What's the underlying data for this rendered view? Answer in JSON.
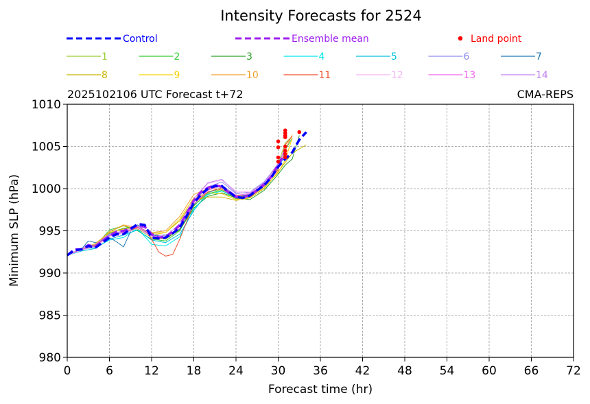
{
  "chart_data": {
    "type": "line",
    "title": "Intensity Forecasts for 2524",
    "subtitle_left": "2025102106 UTC Forecast t+72",
    "subtitle_right": "CMA-REPS",
    "xlabel": "Forecast time (hr)",
    "ylabel": "Minimum SLP (hPa)",
    "xlim": [
      0,
      72
    ],
    "ylim": [
      980,
      1010
    ],
    "xticks": [
      0,
      6,
      12,
      18,
      24,
      30,
      36,
      42,
      48,
      54,
      60,
      66,
      72
    ],
    "yticks": [
      980,
      985,
      990,
      995,
      1000,
      1005,
      1010
    ],
    "grid": true,
    "legend_placement": "top",
    "legend": {
      "control": {
        "label": "Control",
        "color": "#0000ff"
      },
      "mean": {
        "label": "Ensemble mean",
        "color": "#a020f0"
      },
      "land": {
        "label": "Land point",
        "color": "#ff0000"
      }
    },
    "members": [
      {
        "label": "1",
        "color": "#9acd32"
      },
      {
        "label": "2",
        "color": "#32cd32"
      },
      {
        "label": "3",
        "color": "#2ca02c"
      },
      {
        "label": "4",
        "color": "#00e5ee"
      },
      {
        "label": "5",
        "color": "#00bfdf"
      },
      {
        "label": "6",
        "color": "#8c8cf0"
      },
      {
        "label": "7",
        "color": "#1f77b4"
      },
      {
        "label": "8",
        "color": "#c8b400"
      },
      {
        "label": "9",
        "color": "#f5d000"
      },
      {
        "label": "10",
        "color": "#f0a030"
      },
      {
        "label": "11",
        "color": "#f05030"
      },
      {
        "label": "12",
        "color": "#f5b5f5"
      },
      {
        "label": "13",
        "color": "#ee66ee"
      },
      {
        "label": "14",
        "color": "#c080f0"
      }
    ],
    "control_series": {
      "x": [
        0,
        1,
        2,
        3,
        4,
        5,
        6,
        7,
        8,
        9,
        10,
        11,
        12,
        13,
        14,
        15,
        16,
        17,
        18,
        19,
        20,
        21,
        22,
        23,
        24,
        25,
        26,
        27,
        28,
        29,
        30,
        31,
        32,
        33,
        34
      ],
      "y": [
        992.1,
        992.7,
        992.8,
        993.2,
        993.0,
        993.6,
        994.2,
        994.6,
        994.6,
        995.2,
        995.8,
        995.7,
        994.2,
        994.1,
        994.2,
        994.7,
        995.4,
        996.8,
        998.3,
        999.3,
        1000.0,
        1000.3,
        1000.3,
        999.6,
        999.0,
        998.9,
        999.2,
        999.8,
        1000.4,
        1001.3,
        1002.6,
        1003.5,
        1004.3,
        1005.8,
        1006.7
      ]
    },
    "mean_series": {
      "x": [
        0,
        1,
        2,
        3,
        4,
        5,
        6,
        7,
        8,
        9,
        10,
        11,
        12,
        13,
        14,
        15,
        16,
        17,
        18,
        19,
        20,
        21,
        22,
        23,
        24,
        25,
        26,
        27,
        28,
        29,
        30,
        31
      ],
      "y": [
        992.1,
        992.8,
        992.8,
        993.3,
        993.1,
        993.8,
        994.4,
        994.9,
        995.0,
        995.3,
        995.6,
        995.5,
        994.6,
        994.2,
        994.3,
        994.9,
        995.7,
        997.1,
        998.6,
        999.6,
        1000.1,
        1000.4,
        1000.2,
        999.5,
        999.0,
        998.9,
        999.3,
        999.8,
        1000.5,
        1001.4,
        1002.8,
        1004.3
      ]
    },
    "member_series": [
      {
        "x": [
          0,
          2,
          4,
          6,
          8,
          10,
          12,
          14,
          16,
          18,
          20,
          22,
          24,
          26,
          28,
          30,
          31,
          32
        ],
        "y": [
          992.1,
          992.9,
          993.4,
          994.8,
          995.3,
          995.2,
          994.2,
          994.0,
          995.2,
          997.9,
          999.6,
          999.9,
          999.0,
          999.2,
          1000.6,
          1003.0,
          1005.4,
          1006.2
        ]
      },
      {
        "x": [
          0,
          2,
          4,
          6,
          8,
          10,
          12,
          14,
          16,
          18,
          20,
          22,
          24,
          26,
          28,
          30,
          31,
          32
        ],
        "y": [
          992.1,
          992.7,
          993.2,
          995.1,
          995.6,
          995.0,
          994.0,
          993.8,
          995.0,
          998.0,
          999.4,
          999.8,
          998.8,
          999.0,
          1000.3,
          1002.5,
          1004.6,
          1006.0
        ]
      },
      {
        "x": [
          0,
          2,
          4,
          6,
          8,
          10,
          12,
          14,
          16,
          18,
          20,
          22,
          24,
          26,
          28,
          30,
          31,
          32,
          33
        ],
        "y": [
          992.1,
          992.8,
          993.1,
          994.7,
          995.3,
          995.5,
          994.4,
          994.1,
          995.1,
          997.7,
          999.1,
          999.5,
          998.9,
          998.7,
          999.8,
          1001.7,
          1002.8,
          1003.5,
          1006.3
        ]
      },
      {
        "x": [
          0,
          2,
          4,
          6,
          8,
          10,
          12,
          14,
          16,
          18,
          20,
          22,
          24,
          26,
          28,
          30,
          31
        ],
        "y": [
          992.1,
          992.8,
          993.0,
          993.9,
          994.2,
          995.3,
          993.4,
          993.2,
          994.3,
          997.6,
          999.3,
          999.7,
          999.0,
          999.2,
          1000.4,
          1002.6,
          1004.3
        ]
      },
      {
        "x": [
          0,
          2,
          4,
          6,
          8,
          10,
          12,
          14,
          16,
          18,
          20,
          22,
          24,
          26,
          28,
          30,
          31
        ],
        "y": [
          992.1,
          992.6,
          992.9,
          994.0,
          994.5,
          995.1,
          993.9,
          993.6,
          994.6,
          997.4,
          999.5,
          1000.1,
          999.1,
          999.2,
          1000.1,
          1002.4,
          1004.0
        ]
      },
      {
        "x": [
          0,
          2,
          4,
          6,
          8,
          10,
          12,
          14,
          16,
          18,
          20,
          22,
          24,
          26,
          28,
          30,
          31
        ],
        "y": [
          992.1,
          992.9,
          993.3,
          994.5,
          994.9,
          995.4,
          994.4,
          994.2,
          995.5,
          998.4,
          1000.2,
          1000.8,
          999.4,
          999.6,
          1000.8,
          1002.9,
          1004.8
        ]
      },
      {
        "x": [
          0,
          2,
          3,
          4,
          6,
          7,
          8,
          9,
          10,
          12,
          14,
          16,
          18,
          20,
          22,
          24,
          26,
          28,
          30,
          31
        ],
        "y": [
          992.1,
          992.8,
          993.8,
          993.6,
          994.2,
          993.7,
          993.1,
          994.9,
          995.7,
          994.4,
          994.5,
          995.2,
          998.1,
          999.9,
          1000.3,
          999.1,
          999.3,
          1000.5,
          1002.7,
          1004.2
        ]
      },
      {
        "x": [
          0,
          2,
          4,
          6,
          8,
          10,
          12,
          14,
          16,
          18,
          20,
          22,
          24,
          26,
          28,
          30,
          31,
          32,
          34
        ],
        "y": [
          992.1,
          992.9,
          993.3,
          994.9,
          995.6,
          995.2,
          994.7,
          994.8,
          996.2,
          998.6,
          999.0,
          999.0,
          998.6,
          998.9,
          1000.0,
          1002.0,
          1003.1,
          1004.2,
          1005.2
        ]
      },
      {
        "x": [
          0,
          2,
          4,
          6,
          8,
          10,
          12,
          14,
          16,
          18,
          20,
          22,
          24,
          26,
          28,
          30,
          31,
          32
        ],
        "y": [
          992.1,
          992.8,
          993.5,
          994.8,
          995.2,
          995.5,
          994.5,
          994.8,
          996.4,
          998.9,
          999.5,
          999.4,
          998.7,
          999.1,
          1000.1,
          1001.9,
          1003.4,
          1006.0
        ]
      },
      {
        "x": [
          0,
          2,
          4,
          6,
          8,
          10,
          12,
          14,
          16,
          18,
          20,
          22,
          24,
          26,
          28,
          30,
          31,
          32
        ],
        "y": [
          992.1,
          992.9,
          993.4,
          994.9,
          995.7,
          995.4,
          994.8,
          995.0,
          996.7,
          999.3,
          1000.0,
          999.9,
          998.9,
          999.2,
          1000.4,
          1002.3,
          1004.6,
          1006.4
        ]
      },
      {
        "x": [
          0,
          2,
          4,
          6,
          8,
          10,
          11,
          12,
          13,
          14,
          15,
          16,
          18,
          20,
          22,
          24,
          26,
          28,
          30,
          31,
          32
        ],
        "y": [
          992.1,
          992.8,
          993.3,
          994.4,
          994.8,
          995.4,
          995.1,
          994.0,
          992.5,
          992.0,
          992.2,
          994.0,
          998.2,
          999.6,
          1000.1,
          999.2,
          999.0,
          1000.3,
          1002.2,
          1005.2,
          1006.2
        ]
      },
      {
        "x": [
          0,
          2,
          4,
          6,
          8,
          10,
          12,
          14,
          16,
          18,
          20,
          22,
          24,
          26,
          28,
          30,
          31
        ],
        "y": [
          992.1,
          992.7,
          993.1,
          994.2,
          994.6,
          995.3,
          994.3,
          994.1,
          995.6,
          998.7,
          1000.6,
          1001.0,
          999.7,
          999.6,
          1000.6,
          1002.8,
          1004.5
        ]
      },
      {
        "x": [
          0,
          2,
          4,
          6,
          8,
          10,
          12,
          14,
          16,
          18,
          20,
          22,
          24,
          26,
          28,
          30,
          31
        ],
        "y": [
          992.1,
          992.8,
          993.2,
          994.4,
          994.8,
          995.5,
          994.4,
          994.2,
          995.3,
          998.2,
          999.8,
          1000.4,
          999.2,
          999.4,
          1000.5,
          1002.6,
          1004.1
        ]
      },
      {
        "x": [
          0,
          2,
          4,
          6,
          8,
          10,
          12,
          14,
          16,
          18,
          20,
          22,
          24,
          26,
          28,
          30,
          31
        ],
        "y": [
          992.1,
          992.9,
          993.4,
          994.6,
          995.0,
          995.6,
          994.6,
          994.4,
          995.8,
          998.8,
          1000.7,
          1001.1,
          999.5,
          999.5,
          1000.7,
          1003.0,
          1004.7
        ]
      }
    ],
    "land_points": {
      "x": [
        30,
        30,
        30,
        30,
        31,
        31,
        31,
        31,
        31,
        31,
        31,
        31,
        33
      ],
      "y": [
        1005.6,
        1004.9,
        1003.7,
        1003.2,
        1006.9,
        1006.6,
        1006.3,
        1006.1,
        1005.0,
        1004.5,
        1004.1,
        1003.7,
        1006.7
      ]
    }
  }
}
